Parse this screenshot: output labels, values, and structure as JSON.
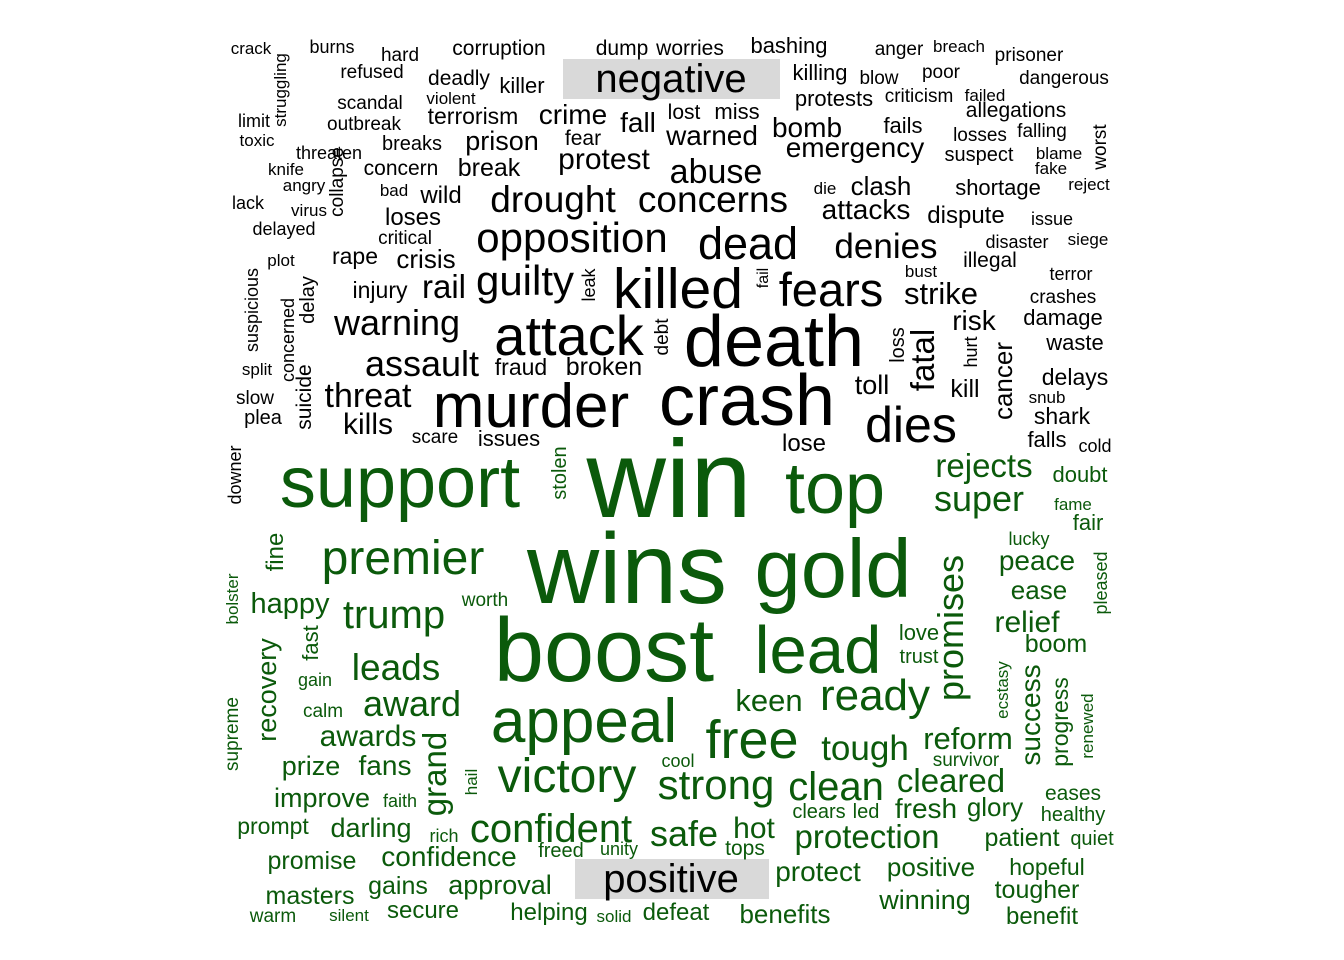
{
  "chart_data": {
    "type": "comparison-wordcloud",
    "groups": [
      {
        "name": "negative",
        "color": "#000000"
      },
      {
        "name": "positive",
        "color": "#0b5a0b"
      }
    ],
    "words": {
      "negative": [
        [
          "crack",
          1
        ],
        [
          "burns",
          1
        ],
        [
          "hard",
          1
        ],
        [
          "corruption",
          2
        ],
        [
          "dump",
          2
        ],
        [
          "worries",
          2
        ],
        [
          "bashing",
          2
        ],
        [
          "anger",
          1
        ],
        [
          "breach",
          1
        ],
        [
          "prisoner",
          1
        ],
        [
          "struggling",
          1
        ],
        [
          "refused",
          1
        ],
        [
          "deadly",
          2
        ],
        [
          "killer",
          2
        ],
        [
          "killing",
          2
        ],
        [
          "blow",
          1
        ],
        [
          "poor",
          1
        ],
        [
          "dangerous",
          1
        ],
        [
          "violent",
          1
        ],
        [
          "scandal",
          1
        ],
        [
          "terrorism",
          2
        ],
        [
          "crime",
          3
        ],
        [
          "lost",
          2
        ],
        [
          "miss",
          2
        ],
        [
          "protests",
          2
        ],
        [
          "criticism",
          1
        ],
        [
          "failed",
          1
        ],
        [
          "allegations",
          1
        ],
        [
          "limit",
          1
        ],
        [
          "outbreak",
          1
        ],
        [
          "fall",
          3
        ],
        [
          "warned",
          3
        ],
        [
          "bomb",
          3
        ],
        [
          "fails",
          2
        ],
        [
          "toxic",
          1
        ],
        [
          "breaks",
          2
        ],
        [
          "prison",
          3
        ],
        [
          "fear",
          2
        ],
        [
          "threaten",
          1
        ],
        [
          "emergency",
          3
        ],
        [
          "losses",
          1
        ],
        [
          "falling",
          1
        ],
        [
          "worst",
          1
        ],
        [
          "knife",
          1
        ],
        [
          "collapse",
          1
        ],
        [
          "concern",
          2
        ],
        [
          "break",
          3
        ],
        [
          "protest",
          4
        ],
        [
          "abuse",
          4
        ],
        [
          "suspect",
          2
        ],
        [
          "blame",
          1
        ],
        [
          "angry",
          1
        ],
        [
          "fake",
          1
        ],
        [
          "die",
          1
        ],
        [
          "clash",
          3
        ],
        [
          "shortage",
          2
        ],
        [
          "reject",
          1
        ],
        [
          "lack",
          1
        ],
        [
          "bad",
          1
        ],
        [
          "wild",
          2
        ],
        [
          "drought",
          5
        ],
        [
          "concerns",
          5
        ],
        [
          "attacks",
          3
        ],
        [
          "dispute",
          2
        ],
        [
          "virus",
          1
        ],
        [
          "issue",
          1
        ],
        [
          "delayed",
          1
        ],
        [
          "loses",
          2
        ],
        [
          "critical",
          1
        ],
        [
          "opposition",
          6
        ],
        [
          "dead",
          7
        ],
        [
          "denies",
          4
        ],
        [
          "disaster",
          1
        ],
        [
          "siege",
          1
        ],
        [
          "plot",
          1
        ],
        [
          "rape",
          2
        ],
        [
          "crisis",
          3
        ],
        [
          "bust",
          1
        ],
        [
          "illegal",
          2
        ],
        [
          "suspicious",
          1
        ],
        [
          "leak",
          1
        ],
        [
          "fail",
          1
        ],
        [
          "terror",
          1
        ],
        [
          "injury",
          2
        ],
        [
          "rail",
          4
        ],
        [
          "guilty",
          6
        ],
        [
          "killed",
          9
        ],
        [
          "fears",
          7
        ],
        [
          "strike",
          4
        ],
        [
          "crashes",
          1
        ],
        [
          "delay",
          1
        ],
        [
          "concerned",
          1
        ],
        [
          "warning",
          5
        ],
        [
          "risk",
          3
        ],
        [
          "damage",
          1
        ],
        [
          "debt",
          1
        ],
        [
          "loss",
          1
        ],
        [
          "attack",
          9
        ],
        [
          "death",
          12
        ],
        [
          "fatal",
          5
        ],
        [
          "split",
          1
        ],
        [
          "assault",
          5
        ],
        [
          "fraud",
          2
        ],
        [
          "broken",
          3
        ],
        [
          "hurt",
          1
        ],
        [
          "cancer",
          4
        ],
        [
          "waste",
          1
        ],
        [
          "suicide",
          2
        ],
        [
          "slow",
          1
        ],
        [
          "threat",
          5
        ],
        [
          "murder",
          12
        ],
        [
          "crash",
          13
        ],
        [
          "toll",
          3
        ],
        [
          "kill",
          2
        ],
        [
          "delays",
          2
        ],
        [
          "snub",
          1
        ],
        [
          "plea",
          1
        ],
        [
          "kills",
          3
        ],
        [
          "shark",
          1
        ],
        [
          "dies",
          8
        ],
        [
          "scare",
          1
        ],
        [
          "issues",
          2
        ],
        [
          "lose",
          2
        ],
        [
          "falls",
          2
        ],
        [
          "cold",
          1
        ],
        [
          "downer",
          1
        ]
      ],
      "positive": [
        [
          "stolen",
          1
        ],
        [
          "support",
          13
        ],
        [
          "win",
          20
        ],
        [
          "top",
          13
        ],
        [
          "rejects",
          5
        ],
        [
          "doubt",
          2
        ],
        [
          "super",
          7
        ],
        [
          "fame",
          1
        ],
        [
          "fair",
          2
        ],
        [
          "fine",
          2
        ],
        [
          "premier",
          9
        ],
        [
          "wins",
          17
        ],
        [
          "gold",
          16
        ],
        [
          "lucky",
          1
        ],
        [
          "peace",
          4
        ],
        [
          "bolster",
          1
        ],
        [
          "happy",
          4
        ],
        [
          "worth",
          1
        ],
        [
          "trump",
          7
        ],
        [
          "promises",
          6
        ],
        [
          "ease",
          3
        ],
        [
          "pleased",
          1
        ],
        [
          "relief",
          4
        ],
        [
          "fast",
          2
        ],
        [
          "boost",
          20
        ],
        [
          "lead",
          13
        ],
        [
          "love",
          2
        ],
        [
          "trust",
          1
        ],
        [
          "boom",
          3
        ],
        [
          "recovery",
          3
        ],
        [
          "leads",
          6
        ],
        [
          "gain",
          1
        ],
        [
          "ecstasy",
          1
        ],
        [
          "success",
          3
        ],
        [
          "progress",
          2
        ],
        [
          "supreme",
          1
        ],
        [
          "calm",
          1
        ],
        [
          "award",
          6
        ],
        [
          "appeal",
          14
        ],
        [
          "keen",
          3
        ],
        [
          "ready",
          8
        ],
        [
          "renewed",
          1
        ],
        [
          "awards",
          4
        ],
        [
          "free",
          10
        ],
        [
          "reform",
          4
        ],
        [
          "tough",
          5
        ],
        [
          "grand",
          3
        ],
        [
          "hail",
          1
        ],
        [
          "cool",
          1
        ],
        [
          "survivor",
          1
        ],
        [
          "prize",
          3
        ],
        [
          "fans",
          4
        ],
        [
          "victory",
          10
        ],
        [
          "clean",
          7
        ],
        [
          "cleared",
          5
        ],
        [
          "strong",
          8
        ],
        [
          "improve",
          3
        ],
        [
          "faith",
          1
        ],
        [
          "eases",
          1
        ],
        [
          "glory",
          3
        ],
        [
          "healthy",
          1
        ],
        [
          "fresh",
          4
        ],
        [
          "clears",
          2
        ],
        [
          "led",
          2
        ],
        [
          "prompt",
          2
        ],
        [
          "darling",
          3
        ],
        [
          "confident",
          7
        ],
        [
          "safe",
          6
        ],
        [
          "hot",
          4
        ],
        [
          "protection",
          6
        ],
        [
          "quiet",
          1
        ],
        [
          "rich",
          1
        ],
        [
          "patient",
          3
        ],
        [
          "freed",
          2
        ],
        [
          "unity",
          1
        ],
        [
          "tops",
          2
        ],
        [
          "promise",
          3
        ],
        [
          "confidence",
          5
        ],
        [
          "positive",
          4
        ],
        [
          "hopeful",
          3
        ],
        [
          "protect",
          5
        ],
        [
          "masters",
          3
        ],
        [
          "gains",
          3
        ],
        [
          "approval",
          4
        ],
        [
          "tougher",
          3
        ],
        [
          "warm",
          1
        ],
        [
          "silent",
          1
        ],
        [
          "secure",
          3
        ],
        [
          "helping",
          3
        ],
        [
          "solid",
          1
        ],
        [
          "defeat",
          3
        ],
        [
          "benefits",
          4
        ],
        [
          "winning",
          4
        ],
        [
          "benefit",
          3
        ]
      ]
    }
  }
}
